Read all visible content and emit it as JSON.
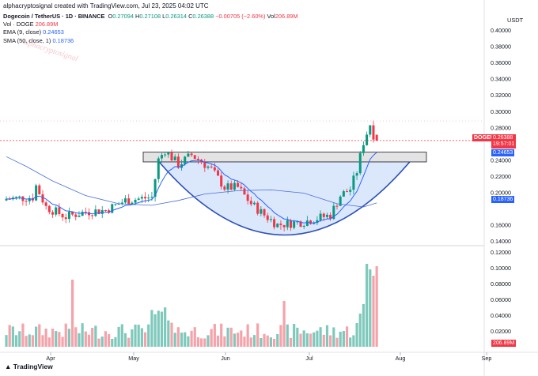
{
  "header": {
    "credit": "alphacryptosignal created with TradingView.com, Jul 23, 2025 04:02 UTC"
  },
  "legend": {
    "symbol": "Dogecoin / TetherUS · 1D · BINANCE",
    "o_label": "O",
    "o_value": "0.27094",
    "h_label": "H",
    "h_value": "0.27108",
    "l_label": "L",
    "l_value": "0.26314",
    "c_label": "C",
    "c_value": "0.26388",
    "change": "−0.00705 (−2.60%)",
    "vol_label": "Vol",
    "vol_value": "206.89M",
    "vol_doge": "Vol · DOGE",
    "vol_doge_value": "206.89M",
    "ema": "EMA (9, close)",
    "ema_value": "0.24653",
    "sma": "SMA (50, close, 1)",
    "sma_value": "0.18736"
  },
  "price_axis": {
    "unit": "USDT",
    "ticks": [
      "0.40000",
      "0.38000",
      "0.36000",
      "0.34000",
      "0.32000",
      "0.30000",
      "0.28000",
      "0.24000",
      "0.22000",
      "0.20000",
      "0.16000",
      "0.14000"
    ]
  },
  "volume_axis": {
    "ticks": [
      "0.12000",
      "0.10000",
      "0.08000",
      "0.06000",
      "0.04000",
      "0.02000"
    ]
  },
  "time_axis": {
    "labels": [
      "Apr",
      "May",
      "Jun",
      "Jul",
      "Aug",
      "Sep"
    ]
  },
  "tags": {
    "symbol_tag": "DOGEUSDT",
    "price": "0.26388",
    "countdown": "19:57:01",
    "ema": "0.24653",
    "sma": "0.18736",
    "volume": "206.89M"
  },
  "colors": {
    "up": "#089981",
    "down": "#f23645",
    "ma": "#2962ff",
    "bowl_fill": "#dbe7fb",
    "bowl_stroke": "#2b4fb8",
    "band_fill": "#e3e3e3",
    "up_vol": "#7fc9bc",
    "down_vol": "#f5a3aa"
  },
  "chart_data": {
    "type": "candlestick",
    "xlabel": "",
    "ylabel": "",
    "ylim": [
      0.13,
      0.41
    ],
    "volume_ylim": [
      0,
      0.12
    ],
    "candles_count": 113,
    "last_candle": {
      "open": 0.27094,
      "high": 0.27108,
      "low": 0.26314,
      "close": 0.26388
    },
    "ema_last": 0.24653,
    "sma_last": 0.18736,
    "resistance_band": [
      0.2375,
      0.2495
    ],
    "watermark": "alphacryptosignal"
  },
  "footer": {
    "logo": "TradingView"
  }
}
